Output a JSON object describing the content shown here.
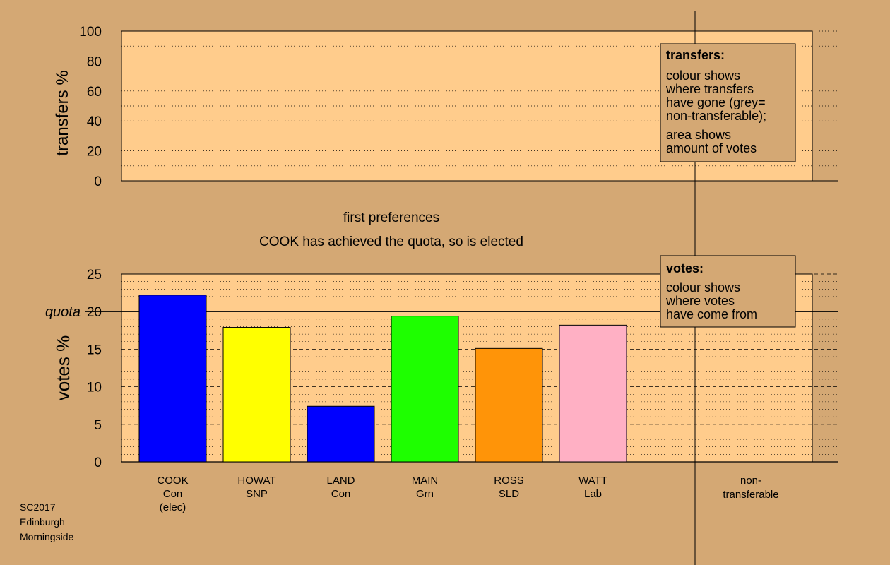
{
  "colors": {
    "background": "#d4a874",
    "panel": "#ffcc8c",
    "legend_box": "#d4a874"
  },
  "footer": {
    "line1": "SC2017",
    "line2": "Edinburgh",
    "line3": "Morningside"
  },
  "stage_text": {
    "line1": "first preferences",
    "line2": "COOK has achieved the quota, so is elected"
  },
  "legend_transfers": {
    "title": "transfers:",
    "lines_a": [
      "colour shows",
      "where transfers",
      "have gone (grey=",
      "non-transferable);"
    ],
    "lines_b": [
      "area shows",
      "amount of votes"
    ]
  },
  "legend_votes": {
    "title": "votes:",
    "lines": [
      "colour shows",
      "where votes",
      "have come from"
    ]
  },
  "chart_data": [
    {
      "type": "bar",
      "ylabel": "transfers %",
      "ylim": [
        0,
        100
      ],
      "yticks": [
        0,
        20,
        40,
        60,
        80,
        100
      ],
      "categories": [],
      "values": []
    },
    {
      "type": "bar",
      "ylabel": "votes %",
      "ylim": [
        0,
        25
      ],
      "yticks": [
        0,
        5,
        10,
        15,
        20,
        25
      ],
      "quota": 20,
      "quota_label": "quota",
      "categories": [
        {
          "name": "COOK",
          "party": "Con",
          "note": "(elec)",
          "value": 22.2,
          "color": "#0000ff"
        },
        {
          "name": "HOWAT",
          "party": "SNP",
          "note": "",
          "value": 17.9,
          "color": "#ffff00"
        },
        {
          "name": "LAND",
          "party": "Con",
          "note": "",
          "value": 7.4,
          "color": "#0000ff"
        },
        {
          "name": "MAIN",
          "party": "Grn",
          "note": "",
          "value": 19.4,
          "color": "#1eff00"
        },
        {
          "name": "ROSS",
          "party": "SLD",
          "note": "",
          "value": 15.1,
          "color": "#ff9408"
        },
        {
          "name": "WATT",
          "party": "Lab",
          "note": "",
          "value": 18.2,
          "color": "#ffb0c4"
        }
      ],
      "nontransferable_label": [
        "non-",
        "transferable"
      ]
    }
  ]
}
